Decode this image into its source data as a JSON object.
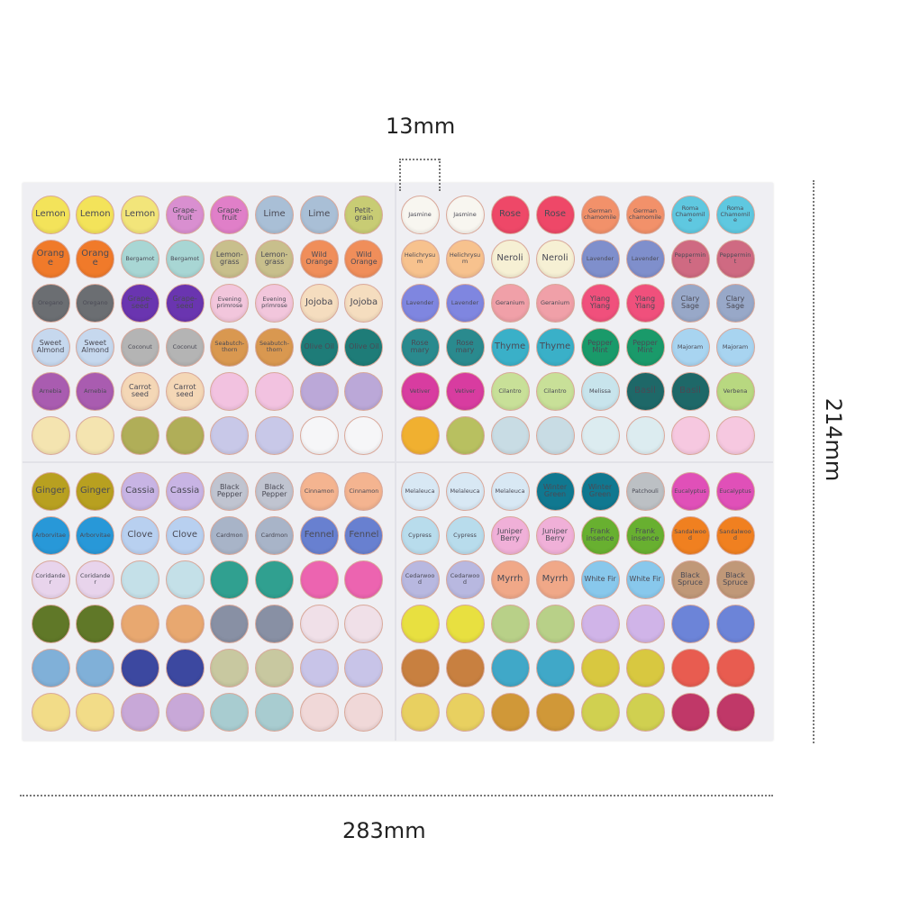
{
  "dimensions": {
    "sticker_diameter": "13mm",
    "sheet_height": "214mm",
    "sheet_width": "283mm"
  },
  "sheet": {
    "rows": [
      [
        {
          "l": "Lemon",
          "c": "#f3e35a"
        },
        {
          "l": "Lemon",
          "c": "#f3e35a"
        },
        {
          "l": "Lemon",
          "c": "#f2e57a"
        },
        {
          "l": "Grape-fruit",
          "c": "#d98fd0"
        },
        {
          "l": "Grape-fruit",
          "c": "#e07fc8"
        },
        {
          "l": "Lime",
          "c": "#a9bfd6"
        },
        {
          "l": "Lime",
          "c": "#a9bfd6"
        },
        {
          "l": "Petit-grain",
          "c": "#c8cc74"
        },
        {
          "l": "Jasmine",
          "c": "#f8f6f0"
        },
        {
          "l": "Jasmine",
          "c": "#f8f6f0"
        },
        {
          "l": "Rose",
          "c": "#ee4868"
        },
        {
          "l": "Rose",
          "c": "#ee4868"
        },
        {
          "l": "German chamomile",
          "c": "#f2916a"
        },
        {
          "l": "German chamomile",
          "c": "#f2916a"
        },
        {
          "l": "Roma Chamomile",
          "c": "#5fc8e0"
        },
        {
          "l": "Roma Chamomile",
          "c": "#5fc8e0"
        }
      ],
      [
        {
          "l": "Orange",
          "c": "#f07a2a"
        },
        {
          "l": "Orange",
          "c": "#f07a2a"
        },
        {
          "l": "Bergamot",
          "c": "#a8d6d4"
        },
        {
          "l": "Bergamot",
          "c": "#a8d6d4"
        },
        {
          "l": "Lemon-grass",
          "c": "#c8bf8c"
        },
        {
          "l": "Lemon-grass",
          "c": "#c8bf8c"
        },
        {
          "l": "Wild Orange",
          "c": "#f08e5a"
        },
        {
          "l": "Wild Orange",
          "c": "#f08e5a"
        },
        {
          "l": "Helichrysum",
          "c": "#f7c28e"
        },
        {
          "l": "Helichrysum",
          "c": "#f7c28e"
        },
        {
          "l": "Neroli",
          "c": "#f6f0d4"
        },
        {
          "l": "Neroli",
          "c": "#f6f0d4"
        },
        {
          "l": "Lavender",
          "c": "#7f8fcc"
        },
        {
          "l": "Lavender",
          "c": "#7f8fcc"
        },
        {
          "l": "Peppermint",
          "c": "#cf6a82"
        },
        {
          "l": "Peppermint",
          "c": "#cf6a82"
        }
      ],
      [
        {
          "l": "Oregano",
          "c": "#6b6e72"
        },
        {
          "l": "Oregano",
          "c": "#6b6e72"
        },
        {
          "l": "Grape-seed",
          "c": "#6a35b0"
        },
        {
          "l": "Grape-seed",
          "c": "#6a35b0"
        },
        {
          "l": "Evening primrose",
          "c": "#f2c6dc"
        },
        {
          "l": "Evening primrose",
          "c": "#f2c6dc"
        },
        {
          "l": "Jojoba",
          "c": "#f5ddbf"
        },
        {
          "l": "Jojoba",
          "c": "#f5ddbf"
        },
        {
          "l": "Lavender",
          "c": "#7f86e0"
        },
        {
          "l": "Lavender",
          "c": "#7f86e0"
        },
        {
          "l": "Geranium",
          "c": "#f0a0a8"
        },
        {
          "l": "Geranium",
          "c": "#f0a0a8"
        },
        {
          "l": "Ylang Ylang",
          "c": "#f0507c"
        },
        {
          "l": "Ylang Ylang",
          "c": "#f0507c"
        },
        {
          "l": "Clary Sage",
          "c": "#98a8c8"
        },
        {
          "l": "Clary Sage",
          "c": "#98a8c8"
        }
      ],
      [
        {
          "l": "Sweet Almond",
          "c": "#c6d8ee"
        },
        {
          "l": "Sweet Almond",
          "c": "#c6d8ee"
        },
        {
          "l": "Coconut",
          "c": "#b4b4b4"
        },
        {
          "l": "Coconut",
          "c": "#b4b4b4"
        },
        {
          "l": "Seabutch-thorn",
          "c": "#d99850"
        },
        {
          "l": "Seabutch-thorn",
          "c": "#d99850"
        },
        {
          "l": "Olive Oil",
          "c": "#1e7c78"
        },
        {
          "l": "Olive Oil",
          "c": "#1e7c78"
        },
        {
          "l": "Rose mary",
          "c": "#2a8a8e"
        },
        {
          "l": "Rose mary",
          "c": "#2a8a8e"
        },
        {
          "l": "Thyme",
          "c": "#3ab0c8"
        },
        {
          "l": "Thyme",
          "c": "#3ab0c8"
        },
        {
          "l": "Pepper Mint",
          "c": "#1a9a6a"
        },
        {
          "l": "Pepper Mint",
          "c": "#1a9a6a"
        },
        {
          "l": "Majoram",
          "c": "#a8d4f0"
        },
        {
          "l": "Majoram",
          "c": "#a8d4f0"
        }
      ],
      [
        {
          "l": "Arnebia",
          "c": "#a95cb0"
        },
        {
          "l": "Arnebia",
          "c": "#a95cb0"
        },
        {
          "l": "Carrot seed",
          "c": "#f4d7b6"
        },
        {
          "l": "Carrot seed",
          "c": "#f4d7b6"
        },
        {
          "l": "",
          "c": "#f2c2e0"
        },
        {
          "l": "",
          "c": "#f2c2e0"
        },
        {
          "l": "",
          "c": "#bba8d8"
        },
        {
          "l": "",
          "c": "#bba8d8"
        },
        {
          "l": "Vetiver",
          "c": "#d83ca0"
        },
        {
          "l": "Vetiver",
          "c": "#d83ca0"
        },
        {
          "l": "Cilantro",
          "c": "#c8e098"
        },
        {
          "l": "Cilantro",
          "c": "#c8e098"
        },
        {
          "l": "Melissa",
          "c": "#c8e4ec"
        },
        {
          "l": "Basil",
          "c": "#1e6868"
        },
        {
          "l": "Basil",
          "c": "#1e6868"
        },
        {
          "l": "Verbena",
          "c": "#b8d880"
        }
      ],
      [
        {
          "l": "",
          "c": "#f4e4b0"
        },
        {
          "l": "",
          "c": "#f4e4b0"
        },
        {
          "l": "",
          "c": "#b0ae58"
        },
        {
          "l": "",
          "c": "#b0ae58"
        },
        {
          "l": "",
          "c": "#c8c8e8"
        },
        {
          "l": "",
          "c": "#c8c8e8"
        },
        {
          "l": "",
          "c": "#f6f6f8"
        },
        {
          "l": "",
          "c": "#f6f6f8"
        },
        {
          "l": "",
          "c": "#f0b030"
        },
        {
          "l": "",
          "c": "#b8c060"
        },
        {
          "l": "",
          "c": "#c8dce4"
        },
        {
          "l": "",
          "c": "#c8dce4"
        },
        {
          "l": "",
          "c": "#dcecf0"
        },
        {
          "l": "",
          "c": "#dcecf0"
        },
        {
          "l": "",
          "c": "#f6c8e0"
        },
        {
          "l": "",
          "c": "#f6c8e0"
        }
      ],
      [
        {
          "l": "Ginger",
          "c": "#b8a020"
        },
        {
          "l": "Ginger",
          "c": "#b8a020"
        },
        {
          "l": "Cassia",
          "c": "#c8b4e4"
        },
        {
          "l": "Cassia",
          "c": "#c8b4e4"
        },
        {
          "l": "Black Pepper",
          "c": "#c0c4d0"
        },
        {
          "l": "Black Pepper",
          "c": "#c0c4d0"
        },
        {
          "l": "Cinnamon",
          "c": "#f4b490"
        },
        {
          "l": "Cinnamon",
          "c": "#f4b490"
        },
        {
          "l": "Melaleuca",
          "c": "#d8e8f4"
        },
        {
          "l": "Melaleuca",
          "c": "#d8e8f4"
        },
        {
          "l": "Melaleuca",
          "c": "#d8e8f4"
        },
        {
          "l": "Winter Green",
          "c": "#107890"
        },
        {
          "l": "Winter Green",
          "c": "#107890"
        },
        {
          "l": "Patchouli",
          "c": "#bcc0c4"
        },
        {
          "l": "Eucalyptus",
          "c": "#e050b8"
        },
        {
          "l": "Eucalyptus",
          "c": "#e050b8"
        }
      ],
      [
        {
          "l": "Arborvitae",
          "c": "#2898d8"
        },
        {
          "l": "Arborvitae",
          "c": "#2898d8"
        },
        {
          "l": "Clove",
          "c": "#b8d0f0"
        },
        {
          "l": "Clove",
          "c": "#b8d0f0"
        },
        {
          "l": "Cardmon",
          "c": "#a8b4c8"
        },
        {
          "l": "Cardmon",
          "c": "#a8b4c8"
        },
        {
          "l": "Fennel",
          "c": "#6880d0"
        },
        {
          "l": "Fennel",
          "c": "#6880d0"
        },
        {
          "l": "Cypress",
          "c": "#b8dcec"
        },
        {
          "l": "Cypress",
          "c": "#b8dcec"
        },
        {
          "l": "Juniper Berry",
          "c": "#f0b0d8"
        },
        {
          "l": "Juniper Berry",
          "c": "#f0b0d8"
        },
        {
          "l": "Frank insence",
          "c": "#68b030"
        },
        {
          "l": "Frank insence",
          "c": "#68b030"
        },
        {
          "l": "Sandalwood",
          "c": "#f08020"
        },
        {
          "l": "Sandalwood",
          "c": "#f08020"
        }
      ],
      [
        {
          "l": "Coridander",
          "c": "#e8d4ec"
        },
        {
          "l": "Coridander",
          "c": "#e8d4ec"
        },
        {
          "l": "",
          "c": "#c4e0e8"
        },
        {
          "l": "",
          "c": "#c4e0e8"
        },
        {
          "l": "",
          "c": "#30a090"
        },
        {
          "l": "",
          "c": "#30a090"
        },
        {
          "l": "",
          "c": "#ec64b0"
        },
        {
          "l": "",
          "c": "#ec64b0"
        },
        {
          "l": "Cedarwood",
          "c": "#b8b8e0"
        },
        {
          "l": "Cedarwood",
          "c": "#b8b8e0"
        },
        {
          "l": "Myrrh",
          "c": "#f0a888"
        },
        {
          "l": "Myrrh",
          "c": "#f0a888"
        },
        {
          "l": "White Fir",
          "c": "#88c8ec"
        },
        {
          "l": "White Fir",
          "c": "#88c8ec"
        },
        {
          "l": "Black Spruce",
          "c": "#c09878"
        },
        {
          "l": "Black Spruce",
          "c": "#c09878"
        }
      ],
      [
        {
          "l": "",
          "c": "#607828"
        },
        {
          "l": "",
          "c": "#607828"
        },
        {
          "l": "",
          "c": "#e8a870"
        },
        {
          "l": "",
          "c": "#e8a870"
        },
        {
          "l": "",
          "c": "#8890a4"
        },
        {
          "l": "",
          "c": "#8890a4"
        },
        {
          "l": "",
          "c": "#f0e0e8"
        },
        {
          "l": "",
          "c": "#f0e0e8"
        },
        {
          "l": "",
          "c": "#e8e040"
        },
        {
          "l": "",
          "c": "#e8e040"
        },
        {
          "l": "",
          "c": "#b8d088"
        },
        {
          "l": "",
          "c": "#b8d088"
        },
        {
          "l": "",
          "c": "#d0b4e8"
        },
        {
          "l": "",
          "c": "#d0b4e8"
        },
        {
          "l": "",
          "c": "#6c84d8"
        },
        {
          "l": "",
          "c": "#6c84d8"
        }
      ],
      [
        {
          "l": "",
          "c": "#80b0d8"
        },
        {
          "l": "",
          "c": "#80b0d8"
        },
        {
          "l": "",
          "c": "#3c48a0"
        },
        {
          "l": "",
          "c": "#3c48a0"
        },
        {
          "l": "",
          "c": "#c8c8a0"
        },
        {
          "l": "",
          "c": "#c8c8a0"
        },
        {
          "l": "",
          "c": "#c8c4e8"
        },
        {
          "l": "",
          "c": "#c8c4e8"
        },
        {
          "l": "",
          "c": "#c88040"
        },
        {
          "l": "",
          "c": "#c88040"
        },
        {
          "l": "",
          "c": "#40a8c8"
        },
        {
          "l": "",
          "c": "#40a8c8"
        },
        {
          "l": "",
          "c": "#d8c840"
        },
        {
          "l": "",
          "c": "#d8c840"
        },
        {
          "l": "",
          "c": "#e85c50"
        },
        {
          "l": "",
          "c": "#e85c50"
        }
      ],
      [
        {
          "l": "",
          "c": "#f2dc88"
        },
        {
          "l": "",
          "c": "#f2dc88"
        },
        {
          "l": "",
          "c": "#c8a8d8"
        },
        {
          "l": "",
          "c": "#c8a8d8"
        },
        {
          "l": "",
          "c": "#a8ccd0"
        },
        {
          "l": "",
          "c": "#a8ccd0"
        },
        {
          "l": "",
          "c": "#f0d8d8"
        },
        {
          "l": "",
          "c": "#f0d8d8"
        },
        {
          "l": "",
          "c": "#e8d060"
        },
        {
          "l": "",
          "c": "#e8d060"
        },
        {
          "l": "",
          "c": "#d09838"
        },
        {
          "l": "",
          "c": "#d09838"
        },
        {
          "l": "",
          "c": "#d0d050"
        },
        {
          "l": "",
          "c": "#d0d050"
        },
        {
          "l": "",
          "c": "#c03868"
        },
        {
          "l": "",
          "c": "#c03868"
        }
      ]
    ]
  }
}
